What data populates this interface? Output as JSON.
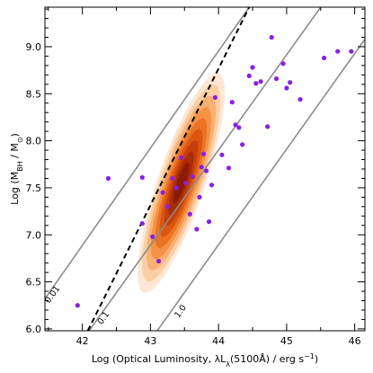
{
  "chart_data": {
    "type": "scatter",
    "title": "",
    "xlabel": {
      "prefix": "Log (Optical Luminosity, λL",
      "sub": "λ",
      "mid": "(5100Å) / erg s",
      "sup": "−1",
      "suffix": ")"
    },
    "ylabel": {
      "prefix": "Log (M",
      "sub1": "BH",
      "mid": " / M",
      "sub2": "⊙",
      "suffix": ")"
    },
    "xlim": [
      41.45,
      46.15
    ],
    "ylim": [
      5.98,
      9.42
    ],
    "xticks": [
      42,
      43,
      44,
      45,
      46
    ],
    "yticks": [
      6.0,
      6.5,
      7.0,
      7.5,
      8.0,
      8.5,
      9.0
    ],
    "xtick_labels": [
      "42",
      "43",
      "44",
      "45",
      "46"
    ],
    "ytick_labels": [
      "6.0",
      "6.5",
      "7.0",
      "7.5",
      "8.0",
      "8.5",
      "9.0"
    ],
    "grid": false,
    "density_contours": {
      "colormap": [
        "#fde7d4",
        "#fbcfa6",
        "#f8b174",
        "#f49346",
        "#ec7325",
        "#dc5610",
        "#c63f06",
        "#aa2c03",
        "#8c1c01"
      ],
      "center": [
        43.45,
        7.55
      ],
      "axis_angle_deg": 62,
      "levels": [
        {
          "a": 1.28,
          "b": 0.46
        },
        {
          "a": 1.15,
          "b": 0.41
        },
        {
          "a": 1.02,
          "b": 0.36
        },
        {
          "a": 0.89,
          "b": 0.31
        },
        {
          "a": 0.76,
          "b": 0.265
        },
        {
          "a": 0.63,
          "b": 0.22
        },
        {
          "a": 0.5,
          "b": 0.175
        },
        {
          "a": 0.37,
          "b": 0.13
        },
        {
          "a": 0.24,
          "b": 0.085
        }
      ]
    },
    "eddington_lines": [
      {
        "label": "0.01",
        "x": [
          41.45,
          44.45
        ],
        "y": [
          6.32,
          9.42
        ]
      },
      {
        "label": "0.1",
        "x": [
          42.1,
          45.5
        ],
        "y": [
          5.98,
          9.42
        ]
      },
      {
        "label": "1.0",
        "x": [
          43.1,
          46.15
        ],
        "y": [
          5.98,
          9.08
        ]
      }
    ],
    "fit_line": {
      "style": "dashed",
      "x": [
        42.08,
        44.45
      ],
      "y": [
        5.98,
        9.42
      ]
    },
    "series": [
      {
        "marker_color": "#8a1fe6",
        "x": [
          41.93,
          42.38,
          42.88,
          42.88,
          43.03,
          43.12,
          43.18,
          43.25,
          43.32,
          43.38,
          43.45,
          43.52,
          43.58,
          43.62,
          43.68,
          43.72,
          43.75,
          43.78,
          43.82,
          43.86,
          43.9,
          43.95,
          44.05,
          44.15,
          44.2,
          44.25,
          44.3,
          44.35,
          44.45,
          44.5,
          44.55,
          44.62,
          44.72,
          44.78,
          44.85,
          44.95,
          45.0,
          45.05,
          45.2,
          45.55,
          45.75,
          45.95
        ],
        "y": [
          6.25,
          7.6,
          7.61,
          7.12,
          6.98,
          6.72,
          7.45,
          7.3,
          7.6,
          7.5,
          7.82,
          7.55,
          7.22,
          7.62,
          7.06,
          7.4,
          7.72,
          7.86,
          7.68,
          7.14,
          7.53,
          8.46,
          7.85,
          7.71,
          8.41,
          8.17,
          8.14,
          7.96,
          8.69,
          8.78,
          8.61,
          8.63,
          8.15,
          9.1,
          8.66,
          8.82,
          8.56,
          8.62,
          8.44,
          8.88,
          8.95,
          8.95
        ]
      }
    ]
  }
}
